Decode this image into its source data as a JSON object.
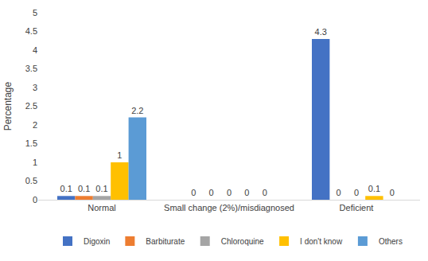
{
  "chart_data": {
    "type": "bar",
    "y_label": "Percentage",
    "categories": [
      "Normal",
      "Small change (2%)/misdiagnosed",
      "Deficient"
    ],
    "series": [
      {
        "name": "Digoxin",
        "color": "#4472c4",
        "values": [
          0.1,
          0,
          4.3
        ]
      },
      {
        "name": "Barbiturate",
        "color": "#ed7d31",
        "values": [
          0.1,
          0,
          0
        ]
      },
      {
        "name": "Chloroquine",
        "color": "#a5a5a5",
        "values": [
          0.1,
          0,
          0
        ]
      },
      {
        "name": "I don't know",
        "color": "#ffc000",
        "values": [
          1,
          0,
          0.1
        ]
      },
      {
        "name": "Others",
        "color": "#5b9bd5",
        "values": [
          2.2,
          0,
          0
        ]
      }
    ],
    "ylim": [
      0,
      5
    ],
    "yticks": [
      0,
      0.5,
      1,
      1.5,
      2,
      2.5,
      3,
      3.5,
      4,
      4.5,
      5
    ],
    "grid": false,
    "legend": "bottom",
    "data_labels": true
  }
}
